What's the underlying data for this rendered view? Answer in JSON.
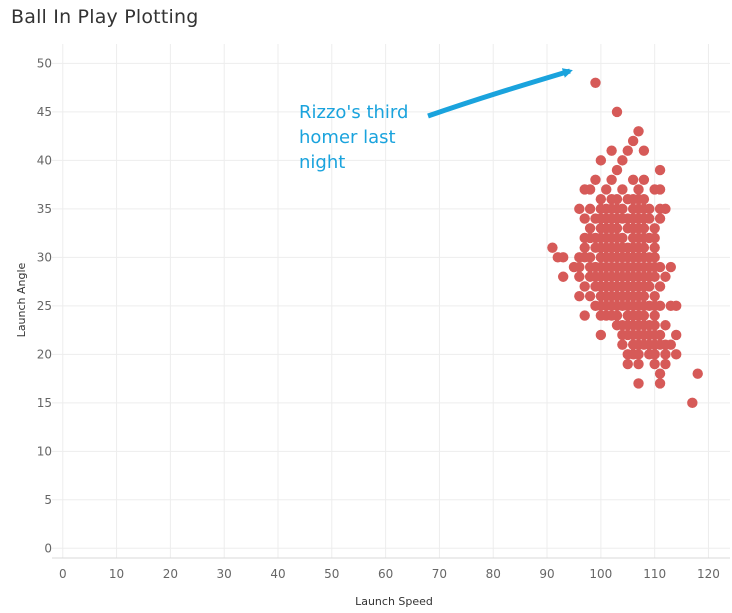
{
  "chart_data": {
    "type": "scatter",
    "title": "Ball In Play Plotting",
    "xlabel": "Launch Speed",
    "ylabel": "Launch Angle",
    "xlim": [
      -2,
      124
    ],
    "ylim": [
      -1,
      52
    ],
    "x_ticks": [
      0,
      10,
      20,
      30,
      40,
      50,
      60,
      70,
      80,
      90,
      100,
      110,
      120
    ],
    "y_ticks": [
      0,
      5,
      10,
      15,
      20,
      25,
      30,
      35,
      40,
      45,
      50
    ],
    "grid": true,
    "point_color": "#d65a58",
    "annotation": {
      "lines": [
        "Rizzo's third",
        "homer last",
        "night"
      ],
      "color": "#1aa3dd",
      "points_to": [
        99,
        48
      ]
    },
    "points": [
      [
        99,
        48
      ],
      [
        103,
        45
      ],
      [
        107,
        43
      ],
      [
        106,
        42
      ],
      [
        102,
        41
      ],
      [
        105,
        41
      ],
      [
        108,
        41
      ],
      [
        100,
        40
      ],
      [
        104,
        40
      ],
      [
        111,
        39
      ],
      [
        103,
        39
      ],
      [
        99,
        38
      ],
      [
        102,
        38
      ],
      [
        106,
        38
      ],
      [
        108,
        38
      ],
      [
        110,
        37
      ],
      [
        97,
        37
      ],
      [
        98,
        37
      ],
      [
        101,
        37
      ],
      [
        104,
        37
      ],
      [
        107,
        37
      ],
      [
        111,
        37
      ],
      [
        100,
        36
      ],
      [
        102,
        36
      ],
      [
        105,
        36
      ],
      [
        106,
        36
      ],
      [
        107,
        36
      ],
      [
        108,
        36
      ],
      [
        103,
        36
      ],
      [
        96,
        35
      ],
      [
        98,
        35
      ],
      [
        100,
        35
      ],
      [
        101,
        35
      ],
      [
        102,
        35
      ],
      [
        103,
        35
      ],
      [
        104,
        35
      ],
      [
        106,
        35
      ],
      [
        107,
        35
      ],
      [
        108,
        35
      ],
      [
        109,
        35
      ],
      [
        111,
        35
      ],
      [
        112,
        35
      ],
      [
        97,
        34
      ],
      [
        99,
        34
      ],
      [
        100,
        34
      ],
      [
        101,
        34
      ],
      [
        102,
        34
      ],
      [
        103,
        34
      ],
      [
        104,
        34
      ],
      [
        105,
        34
      ],
      [
        106,
        34
      ],
      [
        107,
        34
      ],
      [
        108,
        34
      ],
      [
        109,
        34
      ],
      [
        111,
        34
      ],
      [
        98,
        33
      ],
      [
        100,
        33
      ],
      [
        101,
        33
      ],
      [
        102,
        33
      ],
      [
        103,
        33
      ],
      [
        105,
        33
      ],
      [
        106,
        33
      ],
      [
        107,
        33
      ],
      [
        108,
        33
      ],
      [
        110,
        33
      ],
      [
        97,
        32
      ],
      [
        98,
        32
      ],
      [
        99,
        32
      ],
      [
        100,
        32
      ],
      [
        101,
        32
      ],
      [
        102,
        32
      ],
      [
        103,
        32
      ],
      [
        104,
        32
      ],
      [
        106,
        32
      ],
      [
        107,
        32
      ],
      [
        108,
        32
      ],
      [
        109,
        32
      ],
      [
        110,
        32
      ],
      [
        91,
        31
      ],
      [
        97,
        31
      ],
      [
        99,
        31
      ],
      [
        100,
        31
      ],
      [
        101,
        31
      ],
      [
        102,
        31
      ],
      [
        103,
        31
      ],
      [
        104,
        31
      ],
      [
        105,
        31
      ],
      [
        106,
        31
      ],
      [
        107,
        31
      ],
      [
        108,
        31
      ],
      [
        110,
        31
      ],
      [
        92,
        30
      ],
      [
        93,
        30
      ],
      [
        96,
        30
      ],
      [
        97,
        30
      ],
      [
        98,
        30
      ],
      [
        100,
        30
      ],
      [
        101,
        30
      ],
      [
        102,
        30
      ],
      [
        103,
        30
      ],
      [
        104,
        30
      ],
      [
        105,
        30
      ],
      [
        106,
        30
      ],
      [
        107,
        30
      ],
      [
        108,
        30
      ],
      [
        109,
        30
      ],
      [
        110,
        30
      ],
      [
        95,
        29
      ],
      [
        96,
        29
      ],
      [
        98,
        29
      ],
      [
        99,
        29
      ],
      [
        100,
        29
      ],
      [
        101,
        29
      ],
      [
        102,
        29
      ],
      [
        103,
        29
      ],
      [
        104,
        29
      ],
      [
        105,
        29
      ],
      [
        106,
        29
      ],
      [
        107,
        29
      ],
      [
        108,
        29
      ],
      [
        109,
        29
      ],
      [
        110,
        29
      ],
      [
        111,
        29
      ],
      [
        113,
        29
      ],
      [
        93,
        28
      ],
      [
        96,
        28
      ],
      [
        98,
        28
      ],
      [
        99,
        28
      ],
      [
        100,
        28
      ],
      [
        101,
        28
      ],
      [
        102,
        28
      ],
      [
        103,
        28
      ],
      [
        104,
        28
      ],
      [
        105,
        28
      ],
      [
        106,
        28
      ],
      [
        107,
        28
      ],
      [
        108,
        28
      ],
      [
        109,
        28
      ],
      [
        110,
        28
      ],
      [
        112,
        28
      ],
      [
        97,
        27
      ],
      [
        99,
        27
      ],
      [
        100,
        27
      ],
      [
        101,
        27
      ],
      [
        102,
        27
      ],
      [
        103,
        27
      ],
      [
        104,
        27
      ],
      [
        105,
        27
      ],
      [
        106,
        27
      ],
      [
        107,
        27
      ],
      [
        108,
        27
      ],
      [
        109,
        27
      ],
      [
        111,
        27
      ],
      [
        96,
        26
      ],
      [
        98,
        26
      ],
      [
        100,
        26
      ],
      [
        101,
        26
      ],
      [
        102,
        26
      ],
      [
        103,
        26
      ],
      [
        104,
        26
      ],
      [
        105,
        26
      ],
      [
        106,
        26
      ],
      [
        107,
        26
      ],
      [
        108,
        26
      ],
      [
        110,
        26
      ],
      [
        99,
        25
      ],
      [
        100,
        25
      ],
      [
        101,
        25
      ],
      [
        102,
        25
      ],
      [
        103,
        25
      ],
      [
        104,
        25
      ],
      [
        105,
        25
      ],
      [
        106,
        25
      ],
      [
        107,
        25
      ],
      [
        108,
        25
      ],
      [
        109,
        25
      ],
      [
        110,
        25
      ],
      [
        111,
        25
      ],
      [
        113,
        25
      ],
      [
        114,
        25
      ],
      [
        97,
        24
      ],
      [
        100,
        24
      ],
      [
        101,
        24
      ],
      [
        102,
        24
      ],
      [
        103,
        24
      ],
      [
        105,
        24
      ],
      [
        106,
        24
      ],
      [
        107,
        24
      ],
      [
        108,
        24
      ],
      [
        110,
        24
      ],
      [
        103,
        23
      ],
      [
        104,
        23
      ],
      [
        105,
        23
      ],
      [
        106,
        23
      ],
      [
        107,
        23
      ],
      [
        108,
        23
      ],
      [
        109,
        23
      ],
      [
        110,
        23
      ],
      [
        112,
        23
      ],
      [
        100,
        22
      ],
      [
        104,
        22
      ],
      [
        105,
        22
      ],
      [
        106,
        22
      ],
      [
        107,
        22
      ],
      [
        108,
        22
      ],
      [
        109,
        22
      ],
      [
        110,
        22
      ],
      [
        111,
        22
      ],
      [
        114,
        22
      ],
      [
        104,
        21
      ],
      [
        106,
        21
      ],
      [
        107,
        21
      ],
      [
        108,
        21
      ],
      [
        109,
        21
      ],
      [
        110,
        21
      ],
      [
        111,
        21
      ],
      [
        112,
        21
      ],
      [
        113,
        21
      ],
      [
        105,
        20
      ],
      [
        106,
        20
      ],
      [
        107,
        20
      ],
      [
        109,
        20
      ],
      [
        110,
        20
      ],
      [
        112,
        20
      ],
      [
        114,
        20
      ],
      [
        105,
        19
      ],
      [
        107,
        19
      ],
      [
        110,
        19
      ],
      [
        112,
        19
      ],
      [
        111,
        18
      ],
      [
        118,
        18
      ],
      [
        107,
        17
      ],
      [
        111,
        17
      ],
      [
        117,
        15
      ]
    ]
  }
}
